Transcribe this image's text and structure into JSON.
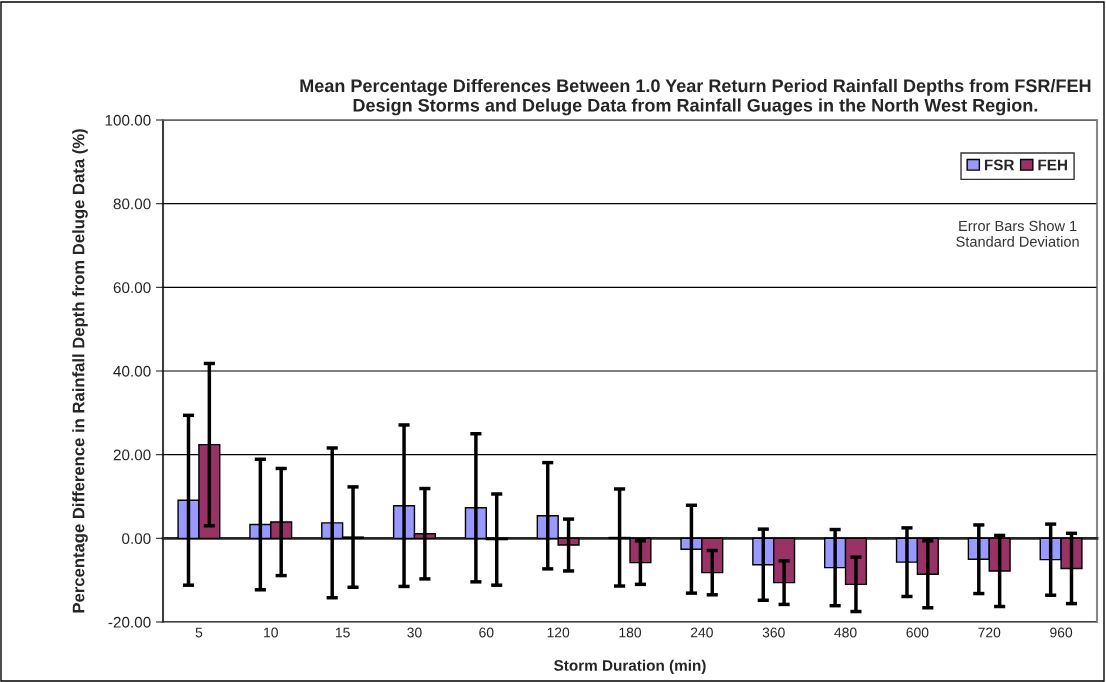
{
  "chart_data": {
    "type": "bar",
    "title": "Mean Percentage Differences Between 1.0 Year Return Period Rainfall Depths from FSR/FEH Design Storms and Deluge Data from Rainfall Guages in the North West Region.",
    "xlabel": "Storm Duration (min)",
    "ylabel": "Percentage Difference in Rainfall Depth from Deluge Data (%)",
    "categories": [
      "5",
      "10",
      "15",
      "30",
      "60",
      "120",
      "180",
      "240",
      "360",
      "480",
      "600",
      "720",
      "960"
    ],
    "series": [
      {
        "name": "FSR",
        "color": "#9999ff",
        "values": [
          9.1,
          3.3,
          3.7,
          7.8,
          7.3,
          5.4,
          0.2,
          -2.6,
          -6.3,
          -7.0,
          -5.7,
          -5.0,
          -5.1
        ],
        "errors": [
          20.3,
          15.6,
          17.9,
          19.3,
          17.7,
          12.7,
          11.6,
          10.5,
          8.5,
          9.1,
          8.2,
          8.2,
          8.5
        ]
      },
      {
        "name": "FEH",
        "color": "#993366",
        "values": [
          22.4,
          3.9,
          0.3,
          1.1,
          -0.3,
          -1.6,
          -5.8,
          -8.2,
          -10.6,
          -11.0,
          -8.6,
          -7.8,
          -7.2
        ],
        "errors": [
          19.4,
          12.8,
          12.0,
          10.8,
          10.9,
          6.2,
          5.2,
          5.3,
          5.2,
          6.5,
          8.0,
          8.5,
          8.4
        ]
      }
    ],
    "ylim": [
      -20,
      100
    ],
    "yticks": [
      {
        "value": -20,
        "label": "-20.00"
      },
      {
        "value": 0,
        "label": "0.00"
      },
      {
        "value": 20,
        "label": "20.00"
      },
      {
        "value": 40,
        "label": "40.00"
      },
      {
        "value": 60,
        "label": "60.00"
      },
      {
        "value": 80,
        "label": "80.00"
      },
      {
        "value": 100,
        "label": "100.00"
      }
    ],
    "grid": "y",
    "legend": "top right",
    "annotations": [
      "Error Bars Show 1\nStandard Deviation"
    ]
  }
}
